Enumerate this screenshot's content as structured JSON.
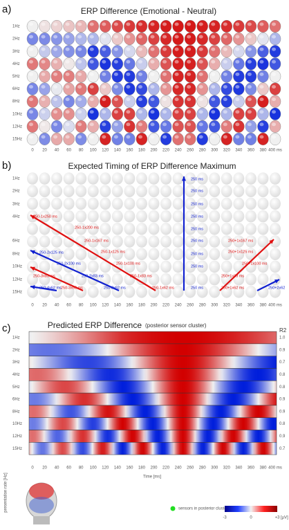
{
  "panel_a": {
    "letter": "a)",
    "title": "ERP Difference (Emotional - Neutral)",
    "rows": [
      "1Hz",
      "2Hz",
      "3Hz",
      "4Hz",
      "5Hz",
      "6Hz",
      "8Hz",
      "10Hz",
      "12Hz",
      "15Hz"
    ],
    "x_labels": [
      "0",
      "20",
      "40",
      "60",
      "80",
      "100",
      "120",
      "140",
      "160",
      "180",
      "200",
      "220",
      "240",
      "260",
      "280",
      "300",
      "320",
      "340",
      "360",
      "380",
      "400 ms"
    ]
  },
  "panel_b": {
    "letter": "b)",
    "title": "Expected Timing of ERP Difference Maximum",
    "rows": [
      "1Hz",
      "2Hz",
      "3Hz",
      "4Hz",
      "6Hz",
      "8Hz",
      "10Hz",
      "12Hz",
      "15Hz"
    ],
    "x_labels": [
      "0",
      "20",
      "40",
      "60",
      "80",
      "100",
      "120",
      "140",
      "160",
      "180",
      "200",
      "220",
      "240",
      "260",
      "280",
      "300",
      "320",
      "340",
      "360",
      "380",
      "400 ms"
    ],
    "red_labels": [
      "250-1x250 ms",
      "250-1x200 ms",
      "250-1x167 ms",
      "250-1x125 ms",
      "250-1x100 ms",
      "250-1x83 ms",
      "250-1x62 ms",
      "250-3x83 ms",
      "250-3x62 ms",
      "250+1x167 ms",
      "250+1x125 ms",
      "250+1x100 ms",
      "250+1x83 ms",
      "250+1x62 ms"
    ],
    "blue_labels": [
      "250-2x125 ms",
      "250-2x100 ms",
      "250-2x83 ms",
      "250-2x62 ms",
      "250-4x62 ms",
      "250+2x62",
      "250 ms",
      "250 ms",
      "250 ms",
      "250 ms",
      "250 ms",
      "250 ms",
      "250 ms",
      "250 ms",
      "250 ms"
    ]
  },
  "panel_c": {
    "letter": "c)",
    "title": "Predicted ERP Difference",
    "subtitle": "(posterior sensor cluster)",
    "r2_header": "R2",
    "r2_values": [
      "1.0",
      "0.9",
      "0.7",
      "0.8",
      "0.8",
      "0.9",
      "0.9",
      "0.8",
      "0.9",
      "0.7"
    ],
    "rows": [
      "1Hz",
      "2Hz",
      "3Hz",
      "4Hz",
      "5Hz",
      "6Hz",
      "8Hz",
      "10Hz",
      "12Hz",
      "15Hz"
    ],
    "x_labels": [
      "0",
      "20",
      "40",
      "60",
      "80",
      "100",
      "120",
      "140",
      "160",
      "180",
      "200",
      "220",
      "240",
      "260",
      "280",
      "300",
      "320",
      "340",
      "360",
      "380",
      "400 ms"
    ],
    "x_axis_label": "Time [ms]",
    "y_axis_label": "presentation rate [Hz]",
    "legend_label": "sensors in posterior cluster",
    "colorbar_labels": [
      "-3",
      "0",
      "+3"
    ],
    "colorbar_unit": "[µV]"
  }
}
